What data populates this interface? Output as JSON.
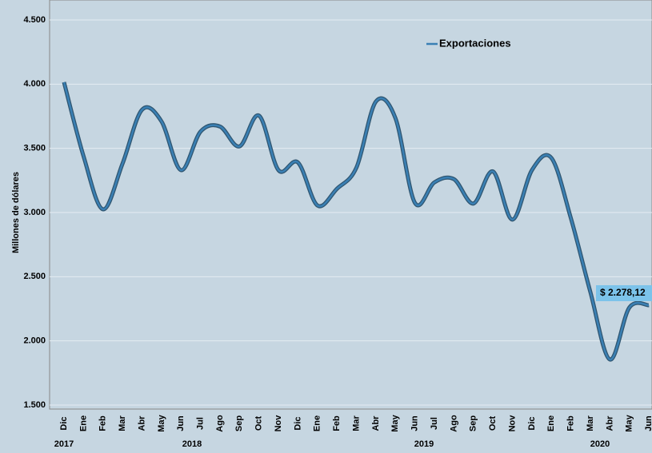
{
  "chart_data": {
    "type": "line",
    "y_label": "Millones de dólares",
    "categories": [
      "Dic",
      "Ene",
      "Feb",
      "Mar",
      "Abr",
      "May",
      "Jun",
      "Jul",
      "Ago",
      "Sep",
      "Oct",
      "Nov",
      "Dic",
      "Ene",
      "Feb",
      "Mar",
      "Abr",
      "May",
      "Jun",
      "Jul",
      "Ago",
      "Sep",
      "Oct",
      "Nov",
      "Dic",
      "Ene",
      "Feb",
      "Mar",
      "Abr",
      "May",
      "Jun"
    ],
    "years": [
      "2017",
      "2018",
      "2019",
      "2020"
    ],
    "series": [
      {
        "name": "Exportaciones",
        "color": "#3a80b4",
        "values": [
          4015,
          3440,
          3025,
          3380,
          3800,
          3710,
          3330,
          3630,
          3670,
          3515,
          3755,
          3330,
          3390,
          3055,
          3185,
          3350,
          3865,
          3735,
          3075,
          3235,
          3260,
          3070,
          3320,
          2945,
          3330,
          3425,
          2955,
          2380,
          1855,
          2260,
          2278.12
        ],
        "value_labels": [
          null,
          null,
          null,
          null,
          null,
          null,
          null,
          null,
          null,
          null,
          null,
          null,
          null,
          null,
          null,
          null,
          null,
          null,
          null,
          null,
          null,
          null,
          null,
          null,
          null,
          null,
          null,
          null,
          null,
          null,
          "$ 2.278,12"
        ]
      }
    ],
    "ylim": [
      1500,
      4500
    ],
    "yticks": [
      {
        "value": 1500,
        "label": "1.500"
      },
      {
        "value": 2000,
        "label": "2.000"
      },
      {
        "value": 2500,
        "label": "2.500"
      },
      {
        "value": 3000,
        "label": "3.000"
      },
      {
        "value": 3500,
        "label": "3.500"
      },
      {
        "value": 4000,
        "label": "4.000"
      },
      {
        "value": 4500,
        "label": "4.500"
      }
    ],
    "grid": true,
    "legend": "top"
  }
}
